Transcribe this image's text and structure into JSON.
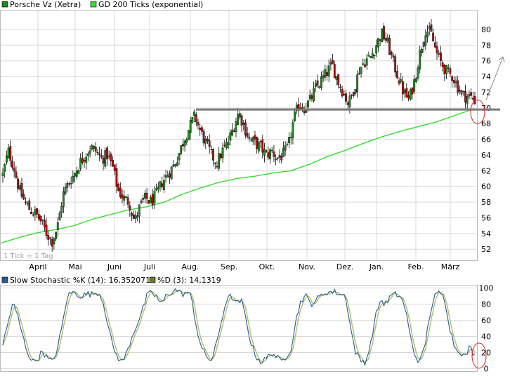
{
  "colors": {
    "up": "#1f8a1f",
    "down": "#b01010",
    "ma": "#33dd33",
    "k": "#2a5a8a",
    "d": "#a8c070",
    "grid": "#d8d8d8",
    "support": "#7a7a7a",
    "circle": "#dd2222"
  },
  "chart_data": [
    {
      "type": "candlestick",
      "title": "Porsche Vz (Xetra)",
      "legend": [
        {
          "label": "Porsche Vz (Xetra)",
          "color": "#1f8a1f"
        },
        {
          "label": "GD 200 Ticks (exponential)",
          "color": "#33dd33"
        }
      ],
      "note": "1 Tick = 1 Tag",
      "x_labels": [
        "April",
        "Mai",
        "Juni",
        "Juli",
        "Aug.",
        "Sep.",
        "Okt.",
        "Nov.",
        "Dez.",
        "Jan.",
        "Feb.",
        "März"
      ],
      "y_ticks": [
        52,
        54,
        56,
        58,
        60,
        62,
        64,
        66,
        68,
        70,
        72,
        74,
        76,
        78,
        80
      ],
      "ylim": [
        50.5,
        82.5
      ],
      "price_path": [
        61.5,
        64.5,
        62.5,
        59.5,
        58,
        57,
        56.5,
        55.5,
        54,
        53,
        55,
        59,
        60.5,
        61.5,
        63,
        64,
        65,
        64.5,
        63.5,
        64,
        62.5,
        59.5,
        58.5,
        58,
        55.5,
        57.5,
        58.5,
        58,
        59,
        60.5,
        61.5,
        62.5,
        64,
        66,
        67.5,
        69,
        67,
        65.5,
        64,
        63,
        64.5,
        65.5,
        67.5,
        69.5,
        67.5,
        66,
        65.5,
        65,
        64,
        64.5,
        63.5,
        64,
        65,
        68.5,
        70.5,
        70,
        71,
        72.5,
        73.5,
        74.5,
        75.5,
        73.5,
        72,
        70.5,
        72.5,
        75,
        76,
        76.5,
        78,
        79.5,
        78.5,
        76,
        74,
        72,
        71,
        73.5,
        77,
        80,
        79.5,
        77,
        75.5,
        74.5,
        74,
        72.5,
        71.5,
        71.5,
        71
      ],
      "ma200": [
        52.8,
        53.5,
        54.1,
        54.5,
        55.0,
        55.8,
        56.4,
        57.0,
        57.4,
        58.0,
        59.0,
        59.8,
        60.5,
        61.0,
        61.3,
        61.7,
        62.0,
        62.8,
        63.8,
        64.6,
        65.5,
        66.3,
        67.0,
        67.6,
        68.2,
        69.0,
        69.8
      ],
      "support_line": 69.8,
      "projection": {
        "from": 71,
        "to": 76.5
      }
    },
    {
      "type": "line",
      "series": [
        {
          "name": "Slow Stochastic %K (14)",
          "value": "16,352071",
          "color": "#2a5a8a"
        },
        {
          "name": "%D (3)",
          "value": "14,1319",
          "color": "#6a7a2a"
        }
      ],
      "y_ticks": [
        0,
        20,
        40,
        60,
        80,
        100
      ],
      "ylim": [
        -4,
        104
      ],
      "k_path": [
        30,
        55,
        82,
        65,
        40,
        20,
        8,
        12,
        22,
        12,
        8,
        25,
        55,
        90,
        95,
        92,
        90,
        93,
        92,
        95,
        88,
        60,
        30,
        15,
        8,
        20,
        40,
        55,
        70,
        90,
        95,
        88,
        80,
        92,
        95,
        98,
        92,
        95,
        88,
        50,
        25,
        15,
        10,
        30,
        60,
        85,
        90,
        80,
        85,
        60,
        30,
        15,
        8,
        12,
        20,
        15,
        8,
        15,
        25,
        60,
        85,
        90,
        80,
        85,
        90,
        95,
        95,
        95,
        92,
        90,
        50,
        20,
        10,
        8,
        30,
        65,
        85,
        80,
        90,
        92,
        90,
        75,
        40,
        15,
        8,
        30,
        70,
        90,
        95,
        85,
        50,
        25,
        22,
        14,
        27,
        16
      ]
    }
  ]
}
